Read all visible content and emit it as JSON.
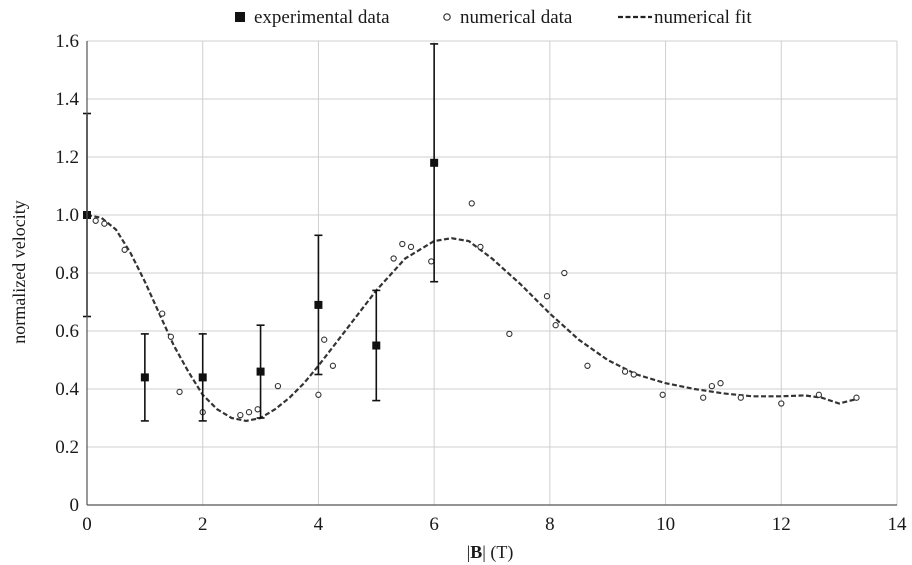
{
  "chart_data": {
    "type": "scatter",
    "xlabel_prefix": "|",
    "xlabel_bold": "B",
    "xlabel_suffix": "| (T)",
    "ylabel": "normalized velocity",
    "xlim": [
      0,
      14
    ],
    "ylim": [
      0,
      1.6
    ],
    "xticks": [
      "0",
      "2",
      "4",
      "6",
      "8",
      "10",
      "12",
      "14"
    ],
    "yticks": [
      "0",
      "0.2",
      "0.4",
      "0.6",
      "0.8",
      "1.0",
      "1.2",
      "1.4",
      "1.6"
    ],
    "grid": true,
    "legend_position": "top",
    "series": [
      {
        "name": "experimental data",
        "marker": "filled-square",
        "color": "#111111",
        "points": [
          {
            "x": 0,
            "y": 1.0,
            "err_low": 0.65,
            "err_high": 1.35
          },
          {
            "x": 1,
            "y": 0.44,
            "err_low": 0.29,
            "err_high": 0.59
          },
          {
            "x": 2,
            "y": 0.44,
            "err_low": 0.29,
            "err_high": 0.59
          },
          {
            "x": 3,
            "y": 0.46,
            "err_low": 0.3,
            "err_high": 0.62
          },
          {
            "x": 4,
            "y": 0.69,
            "err_low": 0.45,
            "err_high": 0.93
          },
          {
            "x": 5,
            "y": 0.55,
            "err_low": 0.36,
            "err_high": 0.74
          },
          {
            "x": 6,
            "y": 1.18,
            "err_low": 0.77,
            "err_high": 1.59
          }
        ]
      },
      {
        "name": "numerical data",
        "marker": "open-circle",
        "color": "#333333",
        "points": [
          {
            "x": 0.15,
            "y": 0.98
          },
          {
            "x": 0.3,
            "y": 0.97
          },
          {
            "x": 0.65,
            "y": 0.88
          },
          {
            "x": 1.3,
            "y": 0.66
          },
          {
            "x": 1.45,
            "y": 0.58
          },
          {
            "x": 1.6,
            "y": 0.39
          },
          {
            "x": 2.0,
            "y": 0.32
          },
          {
            "x": 2.65,
            "y": 0.31
          },
          {
            "x": 2.8,
            "y": 0.32
          },
          {
            "x": 2.95,
            "y": 0.33
          },
          {
            "x": 3.3,
            "y": 0.41
          },
          {
            "x": 4.0,
            "y": 0.38
          },
          {
            "x": 4.1,
            "y": 0.57
          },
          {
            "x": 4.25,
            "y": 0.48
          },
          {
            "x": 5.3,
            "y": 0.85
          },
          {
            "x": 5.45,
            "y": 0.9
          },
          {
            "x": 5.6,
            "y": 0.89
          },
          {
            "x": 5.95,
            "y": 0.84
          },
          {
            "x": 6.65,
            "y": 1.04
          },
          {
            "x": 6.8,
            "y": 0.89
          },
          {
            "x": 7.3,
            "y": 0.59
          },
          {
            "x": 7.95,
            "y": 0.72
          },
          {
            "x": 8.1,
            "y": 0.62
          },
          {
            "x": 8.25,
            "y": 0.8
          },
          {
            "x": 8.65,
            "y": 0.48
          },
          {
            "x": 9.3,
            "y": 0.46
          },
          {
            "x": 9.45,
            "y": 0.45
          },
          {
            "x": 9.95,
            "y": 0.38
          },
          {
            "x": 10.65,
            "y": 0.37
          },
          {
            "x": 10.8,
            "y": 0.41
          },
          {
            "x": 10.95,
            "y": 0.42
          },
          {
            "x": 11.3,
            "y": 0.37
          },
          {
            "x": 12.0,
            "y": 0.35
          },
          {
            "x": 12.65,
            "y": 0.38
          },
          {
            "x": 13.3,
            "y": 0.37
          }
        ]
      },
      {
        "name": "numerical fit",
        "line": "dashed",
        "color": "#333333",
        "points": [
          {
            "x": 0,
            "y": 1.0
          },
          {
            "x": 0.25,
            "y": 0.99
          },
          {
            "x": 0.5,
            "y": 0.95
          },
          {
            "x": 0.75,
            "y": 0.87
          },
          {
            "x": 1.0,
            "y": 0.77
          },
          {
            "x": 1.25,
            "y": 0.66
          },
          {
            "x": 1.5,
            "y": 0.55
          },
          {
            "x": 1.75,
            "y": 0.46
          },
          {
            "x": 2.0,
            "y": 0.38
          },
          {
            "x": 2.25,
            "y": 0.33
          },
          {
            "x": 2.5,
            "y": 0.3
          },
          {
            "x": 2.75,
            "y": 0.29
          },
          {
            "x": 3.0,
            "y": 0.3
          },
          {
            "x": 3.25,
            "y": 0.33
          },
          {
            "x": 3.5,
            "y": 0.37
          },
          {
            "x": 3.75,
            "y": 0.42
          },
          {
            "x": 4.0,
            "y": 0.48
          },
          {
            "x": 4.5,
            "y": 0.61
          },
          {
            "x": 5.0,
            "y": 0.74
          },
          {
            "x": 5.5,
            "y": 0.85
          },
          {
            "x": 6.0,
            "y": 0.91
          },
          {
            "x": 6.3,
            "y": 0.92
          },
          {
            "x": 6.6,
            "y": 0.91
          },
          {
            "x": 7.0,
            "y": 0.85
          },
          {
            "x": 7.5,
            "y": 0.76
          },
          {
            "x": 8.0,
            "y": 0.66
          },
          {
            "x": 8.5,
            "y": 0.57
          },
          {
            "x": 9.0,
            "y": 0.5
          },
          {
            "x": 9.5,
            "y": 0.45
          },
          {
            "x": 10.0,
            "y": 0.42
          },
          {
            "x": 10.5,
            "y": 0.4
          },
          {
            "x": 11.0,
            "y": 0.385
          },
          {
            "x": 11.5,
            "y": 0.375
          },
          {
            "x": 12.0,
            "y": 0.375
          },
          {
            "x": 12.4,
            "y": 0.378
          },
          {
            "x": 12.7,
            "y": 0.37
          },
          {
            "x": 13.0,
            "y": 0.35
          },
          {
            "x": 13.3,
            "y": 0.365
          }
        ]
      }
    ]
  }
}
